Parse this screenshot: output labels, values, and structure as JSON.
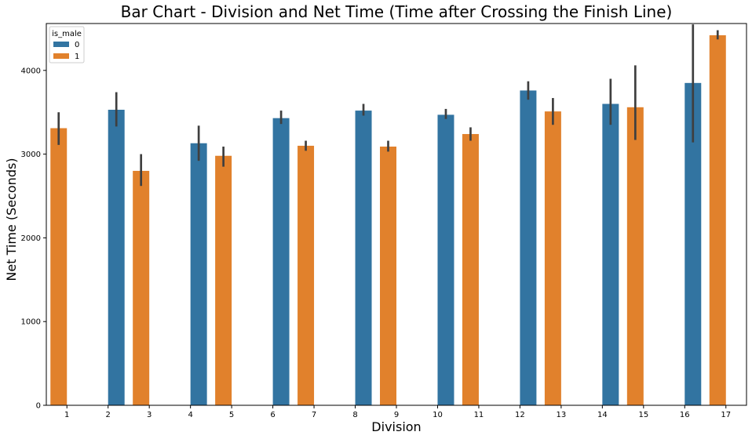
{
  "chart_data": {
    "type": "bar",
    "title": "Bar Chart - Division and Net Time (Time after Crossing the Finish Line)",
    "xlabel": "Division",
    "ylabel": "Net Time (Seconds)",
    "categories": [
      "1",
      "2",
      "3",
      "4",
      "5",
      "6",
      "7",
      "8",
      "9",
      "10",
      "11",
      "12",
      "13",
      "14",
      "15",
      "16",
      "17"
    ],
    "ylim": [
      0,
      4560
    ],
    "yticks": [
      0,
      1000,
      2000,
      3000,
      4000
    ],
    "grid": false,
    "legend": {
      "title": "is_male",
      "placement": "top-left"
    },
    "series": [
      {
        "name": "0",
        "color": "#3274a1",
        "values": [
          null,
          3530,
          null,
          3130,
          null,
          3430,
          null,
          3520,
          null,
          3470,
          null,
          3760,
          null,
          3600,
          null,
          3850,
          null
        ],
        "err_low": [
          null,
          3330,
          null,
          2920,
          null,
          3360,
          null,
          3460,
          null,
          3420,
          null,
          3650,
          null,
          3350,
          null,
          3140,
          null
        ],
        "err_high": [
          null,
          3740,
          null,
          3340,
          null,
          3520,
          null,
          3600,
          null,
          3540,
          null,
          3870,
          null,
          3900,
          null,
          4550,
          null
        ]
      },
      {
        "name": "1",
        "color": "#e1812c",
        "values": [
          3310,
          null,
          2800,
          null,
          2980,
          null,
          3100,
          null,
          3090,
          null,
          3240,
          null,
          3510,
          null,
          3560,
          null,
          4420
        ],
        "err_low": [
          3110,
          null,
          2620,
          null,
          2850,
          null,
          3040,
          null,
          3030,
          null,
          3160,
          null,
          3350,
          null,
          3170,
          null,
          4370
        ],
        "err_high": [
          3500,
          null,
          3000,
          null,
          3090,
          null,
          3160,
          null,
          3160,
          null,
          3320,
          null,
          3670,
          null,
          4060,
          null,
          4480
        ]
      }
    ],
    "error_bar_color": "#3f3f3f"
  }
}
